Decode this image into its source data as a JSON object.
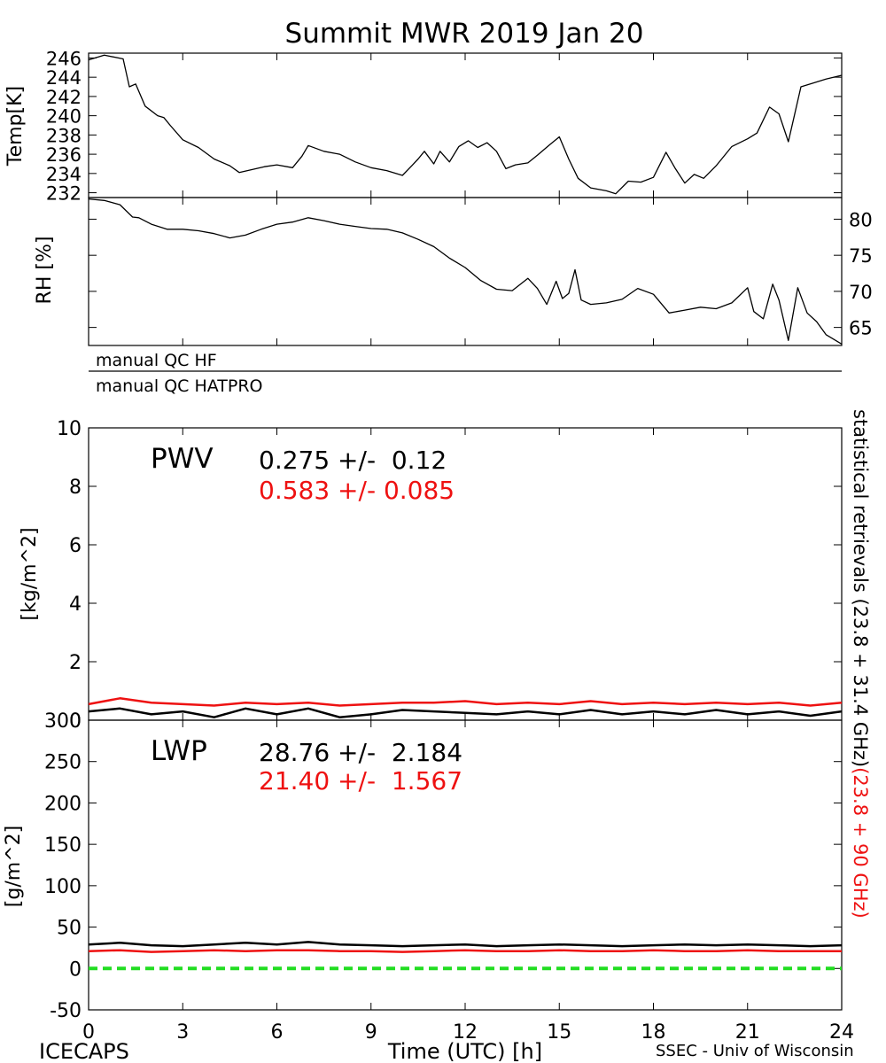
{
  "title": "Summit MWR 2019 Jan 20",
  "footer": {
    "left": "ICECAPS",
    "center": "Time (UTC) [h]",
    "right": "SSEC - Univ of Wisconsin"
  },
  "side_label": {
    "black_part": "statistical retrievals (23.8 + 31.4 GHz)",
    "red_part": "(23.8 + 90 GHz)"
  },
  "qc": {
    "hf": "manual QC HF",
    "hatpro": "manual QC HATPRO"
  },
  "pwv_annotation": {
    "name": "PWV",
    "black": "0.275 +/-  0.12",
    "red": "0.583 +/- 0.085"
  },
  "lwp_annotation": {
    "name": "LWP",
    "black": "28.76 +/-  2.184",
    "red": "21.40 +/-  1.567"
  },
  "colors": {
    "black_series": "#000000",
    "red_series": "#ee1111",
    "zero_line": "#22dd22"
  },
  "chart_data": [
    {
      "type": "line",
      "ylabel": "Temp[K]",
      "xlim": [
        0,
        24
      ],
      "ylim": [
        231.5,
        246.5
      ],
      "yticks": [
        232,
        234,
        236,
        238,
        240,
        242,
        244,
        246
      ],
      "series": [
        {
          "color": "#000000",
          "x": [
            0,
            0.5,
            1.1,
            1.3,
            1.5,
            1.8,
            2.2,
            2.4,
            2.6,
            3.0,
            3.5,
            4.0,
            4.5,
            4.8,
            5.2,
            5.6,
            6.0,
            6.5,
            6.8,
            7.0,
            7.5,
            8.0,
            8.5,
            9.0,
            9.5,
            10.0,
            10.3,
            10.5,
            10.7,
            11.0,
            11.2,
            11.5,
            11.8,
            12.1,
            12.4,
            12.7,
            13.0,
            13.3,
            13.6,
            14.0,
            14.3,
            14.7,
            15.0,
            15.3,
            15.6,
            16.0,
            16.5,
            16.8,
            17.2,
            17.6,
            18.0,
            18.4,
            18.7,
            19.0,
            19.3,
            19.6,
            20.0,
            20.5,
            21.0,
            21.3,
            21.7,
            22.0,
            22.3,
            22.7,
            23.0,
            23.5,
            24.0
          ],
          "y": [
            245.8,
            246.3,
            245.9,
            243.0,
            243.3,
            241.0,
            240.0,
            239.8,
            239.0,
            237.5,
            236.7,
            235.5,
            234.8,
            234.1,
            234.4,
            234.7,
            234.9,
            234.6,
            235.8,
            236.9,
            236.3,
            236.0,
            235.2,
            234.6,
            234.3,
            233.8,
            234.8,
            235.5,
            236.3,
            235.0,
            236.3,
            235.2,
            236.8,
            237.4,
            236.7,
            237.2,
            236.3,
            234.5,
            234.9,
            235.1,
            235.9,
            237.0,
            237.8,
            235.5,
            233.5,
            232.5,
            232.2,
            231.9,
            233.2,
            233.1,
            233.6,
            236.2,
            234.5,
            233.0,
            233.9,
            233.5,
            234.8,
            236.8,
            237.6,
            238.2,
            240.9,
            240.2,
            237.3,
            243.0,
            243.3,
            243.8,
            244.2
          ]
        }
      ]
    },
    {
      "type": "line",
      "ylabel": "RH [%]",
      "xlim": [
        0,
        24
      ],
      "ylim": [
        62.5,
        83
      ],
      "yticks": [
        65,
        70,
        75,
        80
      ],
      "series": [
        {
          "color": "#000000",
          "x": [
            0,
            0.5,
            1.0,
            1.4,
            1.6,
            2.0,
            2.5,
            3.0,
            3.5,
            4.0,
            4.5,
            5.0,
            5.5,
            6.0,
            6.5,
            7.0,
            7.5,
            8.0,
            8.5,
            9.0,
            9.5,
            10.0,
            10.5,
            11.0,
            11.5,
            12.0,
            12.5,
            13.0,
            13.5,
            14.0,
            14.3,
            14.6,
            14.9,
            15.1,
            15.3,
            15.5,
            15.7,
            16.0,
            16.5,
            17.0,
            17.5,
            18.0,
            18.5,
            19.0,
            19.5,
            20.0,
            20.5,
            21.0,
            21.2,
            21.5,
            21.8,
            22.0,
            22.3,
            22.6,
            22.9,
            23.2,
            23.5,
            24.0
          ],
          "y": [
            82.8,
            82.6,
            82.0,
            80.3,
            80.2,
            79.3,
            78.6,
            78.6,
            78.4,
            78.0,
            77.4,
            77.8,
            78.6,
            79.3,
            79.6,
            80.2,
            79.8,
            79.3,
            79.0,
            78.7,
            78.6,
            78.1,
            77.2,
            76.2,
            74.6,
            73.3,
            71.5,
            70.3,
            70.1,
            71.8,
            70.4,
            68.2,
            71.4,
            69.0,
            69.7,
            73.0,
            68.8,
            68.2,
            68.4,
            68.9,
            70.4,
            69.6,
            67.0,
            67.4,
            67.8,
            67.6,
            68.4,
            70.5,
            67.2,
            66.2,
            71.0,
            68.8,
            63.2,
            70.5,
            67.0,
            65.8,
            64.0,
            62.7
          ]
        }
      ]
    },
    {
      "type": "line",
      "ylabel": "[kg/m^2]",
      "xlim": [
        0,
        24
      ],
      "ylim": [
        0,
        10
      ],
      "yticks": [
        0,
        2,
        4,
        6,
        8,
        10
      ],
      "series": [
        {
          "color": "#000000",
          "x": [
            0,
            1,
            2,
            3,
            4,
            5,
            6,
            7,
            8,
            9,
            10,
            11,
            12,
            13,
            14,
            15,
            16,
            17,
            18,
            19,
            20,
            21,
            22,
            23,
            24
          ],
          "y": [
            0.3,
            0.4,
            0.2,
            0.3,
            0.1,
            0.4,
            0.2,
            0.4,
            0.1,
            0.2,
            0.35,
            0.3,
            0.25,
            0.2,
            0.3,
            0.2,
            0.35,
            0.2,
            0.3,
            0.2,
            0.35,
            0.2,
            0.3,
            0.15,
            0.3
          ]
        },
        {
          "color": "#ee1111",
          "x": [
            0,
            1,
            2,
            3,
            4,
            5,
            6,
            7,
            8,
            9,
            10,
            11,
            12,
            13,
            14,
            15,
            16,
            17,
            18,
            19,
            20,
            21,
            22,
            23,
            24
          ],
          "y": [
            0.55,
            0.75,
            0.6,
            0.55,
            0.5,
            0.6,
            0.55,
            0.6,
            0.5,
            0.55,
            0.6,
            0.6,
            0.65,
            0.55,
            0.6,
            0.55,
            0.65,
            0.55,
            0.6,
            0.55,
            0.6,
            0.55,
            0.6,
            0.5,
            0.6
          ]
        }
      ]
    },
    {
      "type": "line",
      "ylabel": "[g/m^2]",
      "xlabel": "Time (UTC) [h]",
      "xlim": [
        0,
        24
      ],
      "ylim": [
        -50,
        300
      ],
      "yticks": [
        -50,
        0,
        50,
        100,
        150,
        200,
        250,
        300
      ],
      "xticks": [
        0,
        3,
        6,
        9,
        12,
        15,
        18,
        21,
        24
      ],
      "series": [
        {
          "color": "#000000",
          "x": [
            0,
            1,
            2,
            3,
            4,
            5,
            6,
            7,
            8,
            9,
            10,
            11,
            12,
            13,
            14,
            15,
            16,
            17,
            18,
            19,
            20,
            21,
            22,
            23,
            24
          ],
          "y": [
            29,
            31,
            28,
            27,
            29,
            31,
            29,
            32,
            29,
            28,
            27,
            28,
            29,
            27,
            28,
            29,
            28,
            27,
            28,
            29,
            28,
            29,
            28,
            27,
            28
          ]
        },
        {
          "color": "#ee1111",
          "x": [
            0,
            1,
            2,
            3,
            4,
            5,
            6,
            7,
            8,
            9,
            10,
            11,
            12,
            13,
            14,
            15,
            16,
            17,
            18,
            19,
            20,
            21,
            22,
            23,
            24
          ],
          "y": [
            21,
            22,
            20,
            21,
            22,
            21,
            22,
            22,
            21,
            21,
            20,
            21,
            22,
            21,
            21,
            22,
            21,
            21,
            22,
            21,
            21,
            22,
            21,
            21,
            21
          ]
        },
        {
          "color": "#22dd22",
          "x": [
            0,
            24
          ],
          "y": [
            0,
            0
          ]
        }
      ]
    }
  ]
}
